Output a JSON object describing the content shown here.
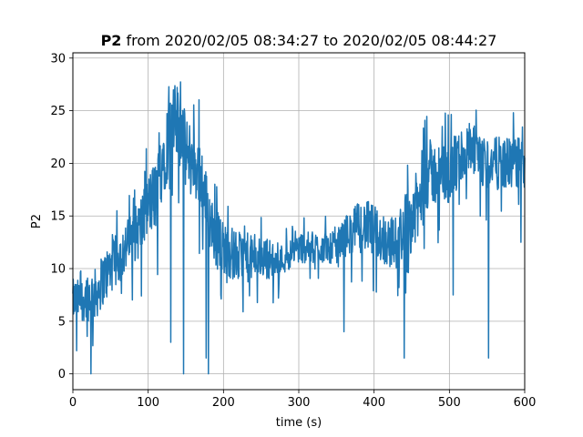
{
  "chart_data": {
    "type": "line",
    "title_prefix": "P2",
    "title_suffix": " from 2020/02/05 08:34:27 to 2020/02/05 08:44:27",
    "xlabel": "time (s)",
    "ylabel": "P2",
    "xlim": [
      0,
      600
    ],
    "ylim": [
      -1.5,
      30.5
    ],
    "xticks": [
      0,
      100,
      200,
      300,
      400,
      500,
      600
    ],
    "yticks": [
      0,
      5,
      10,
      15,
      20,
      25,
      30
    ],
    "grid": true,
    "line_color": "#1f77b4",
    "series": [
      {
        "x": [
          0,
          10,
          20,
          30,
          40,
          50,
          60,
          70,
          80,
          90,
          100,
          110,
          120,
          130,
          140,
          150,
          160,
          170,
          180,
          190,
          200,
          210,
          220,
          230,
          240,
          250,
          260,
          270,
          280,
          290,
          300,
          310,
          320,
          330,
          340,
          350,
          360,
          370,
          380,
          390,
          400,
          410,
          420,
          430,
          440,
          450,
          460,
          470,
          480,
          490,
          500,
          510,
          520,
          530,
          540,
          550,
          560,
          570,
          580,
          590,
          600
        ],
        "y": [
          7,
          7,
          7.5,
          7.5,
          9,
          10,
          11,
          12,
          13,
          14,
          16,
          17,
          21,
          23,
          24,
          21,
          20,
          19,
          15,
          13,
          12,
          11.5,
          11,
          11,
          11,
          11,
          11,
          10.5,
          11,
          11.5,
          12,
          12,
          12,
          12,
          12,
          12,
          13,
          13.5,
          14,
          14,
          13.5,
          13,
          12.5,
          12.5,
          14,
          15,
          16,
          19,
          19,
          19,
          19,
          20,
          21,
          21,
          20,
          20,
          20,
          20,
          20,
          20,
          20
        ],
        "noise": [
          2,
          2,
          2.5,
          2.5,
          2.5,
          2.5,
          2.5,
          2.5,
          2.5,
          3,
          3,
          3.5,
          4,
          4,
          4,
          3.5,
          3.5,
          3.5,
          3,
          3,
          2.5,
          2.5,
          2.5,
          2.5,
          2,
          2,
          2,
          1.5,
          1.5,
          1.5,
          1.5,
          1.5,
          1.5,
          1.5,
          1.5,
          1.5,
          2,
          2,
          2.5,
          2.5,
          2.5,
          2.5,
          2.5,
          2.5,
          3,
          3.5,
          3.5,
          3.5,
          3,
          3,
          3,
          3,
          3,
          3,
          2.5,
          2.5,
          2.5,
          2.5,
          2.5,
          2.5,
          2.5
        ]
      }
    ],
    "spikes": [
      {
        "x": 5,
        "y": 2.2
      },
      {
        "x": 24,
        "y": 0
      },
      {
        "x": 130,
        "y": 3.0
      },
      {
        "x": 147,
        "y": 0
      },
      {
        "x": 177,
        "y": 1.5
      },
      {
        "x": 180,
        "y": 0
      },
      {
        "x": 360,
        "y": 4.0
      },
      {
        "x": 440,
        "y": 1.5
      },
      {
        "x": 505,
        "y": 7.5
      },
      {
        "x": 552,
        "y": 1.5
      },
      {
        "x": 595,
        "y": 12.5
      }
    ]
  }
}
